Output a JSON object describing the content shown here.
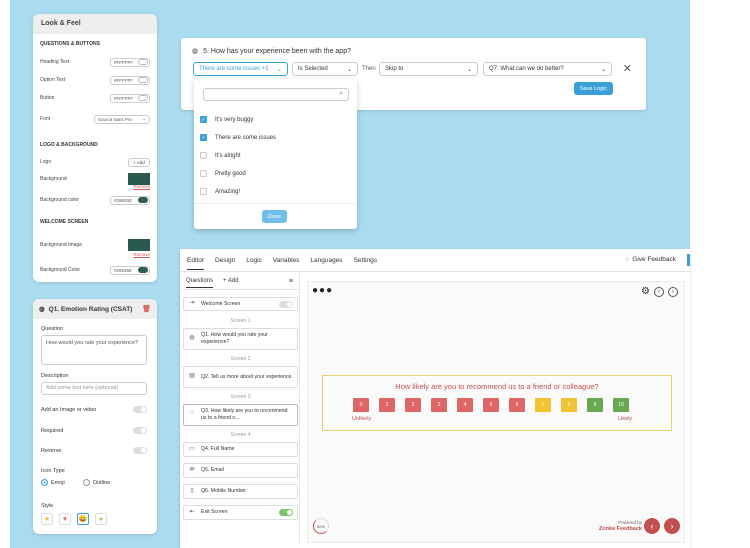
{
  "look_feel": {
    "title": "Look & Feel",
    "questions_buttons_header": "QUESTIONS & BUTTONS",
    "heading_text_label": "Heading Text",
    "heading_text_value": "#FFFFFF",
    "option_text_label": "Option Text",
    "option_text_value": "#FFFFFF",
    "button_label": "Button",
    "button_value": "#FFFFFF",
    "font_label": "Font",
    "font_value": "Source Sans Pro",
    "logo_bg_header": "LOGO & BACKGROUND",
    "logo_label": "Logo",
    "logo_add": "+ Add",
    "background_label": "Background",
    "remove_label": "Remove",
    "background_color_label": "Background color",
    "background_color_value": "#29625E",
    "welcome_header": "WELCOME SCREEN",
    "bg_image_label": "Background Image",
    "remove_label2": "Remove",
    "bg_color_label": "Background Color",
    "bg_color_value": "#29625E"
  },
  "q1_panel": {
    "title": "Q1. Emotion Rating (CSAT)",
    "question_label": "Question",
    "question_value": "How would you rate your experience?",
    "description_label": "Description",
    "description_placeholder": "Add some text here (optional)",
    "image_video_label": "Add an Image or video",
    "required_label": "Required",
    "reverse_label": "Reverse",
    "icon_type_label": "Icon Type",
    "icon_emoji": "Emoji",
    "icon_outline": "Outline",
    "style_label": "Style"
  },
  "logic": {
    "question_title": "5. How has your experience been with the app?",
    "condition_value": "There are some issues +1",
    "operator_value": "Is Selected",
    "then_label": "Then",
    "action_value": "Skip to",
    "target_value": "Q7: What can we do better?",
    "save_label": "Save Logic",
    "options": [
      {
        "label": "It's very buggy",
        "checked": true
      },
      {
        "label": "There are some issues",
        "checked": true
      },
      {
        "label": "It's alright",
        "checked": false
      },
      {
        "label": "Pretty good",
        "checked": false
      },
      {
        "label": "Amazing!",
        "checked": false
      }
    ],
    "done_label": "Done"
  },
  "editor": {
    "tabs": [
      "Editor",
      "Design",
      "Logic",
      "Variables",
      "Languages",
      "Settings"
    ],
    "give_feedback": "Give Feedback",
    "questions_tab": "Questions",
    "add_tab": "+ Add",
    "welcome_screen": "Welcome Screen",
    "screen1": "Screen 1",
    "q1": "Q1. How would you rate your experience?",
    "screen2": "Screen 2",
    "q2": "Q2. Tell us more about your experience.",
    "screen3": "Screen 3",
    "q3": "Q3. How likely are you to recommend us to a friend o...",
    "screen4": "Screen 4",
    "q4": "Q4. Full Name",
    "q5": "Q5. Email",
    "q6": "Q6. Mobile Number",
    "exit_screen": "Exit Screen"
  },
  "preview": {
    "nps_question": "How likely are you to recommend us to a friend or colleague?",
    "scale": [
      {
        "n": "0",
        "color": "#e06666"
      },
      {
        "n": "1",
        "color": "#e06666"
      },
      {
        "n": "2",
        "color": "#e06666"
      },
      {
        "n": "3",
        "color": "#e06666"
      },
      {
        "n": "4",
        "color": "#e06666"
      },
      {
        "n": "5",
        "color": "#e06666"
      },
      {
        "n": "6",
        "color": "#e06666"
      },
      {
        "n": "7",
        "color": "#f1c232"
      },
      {
        "n": "8",
        "color": "#f1c232"
      },
      {
        "n": "9",
        "color": "#6aa84f"
      },
      {
        "n": "10",
        "color": "#6aa84f"
      }
    ],
    "low_label": "Unlikely",
    "high_label": "Likely",
    "progress": "50%",
    "powered_by": "Powered by",
    "brand": "Zonka Feedback"
  }
}
